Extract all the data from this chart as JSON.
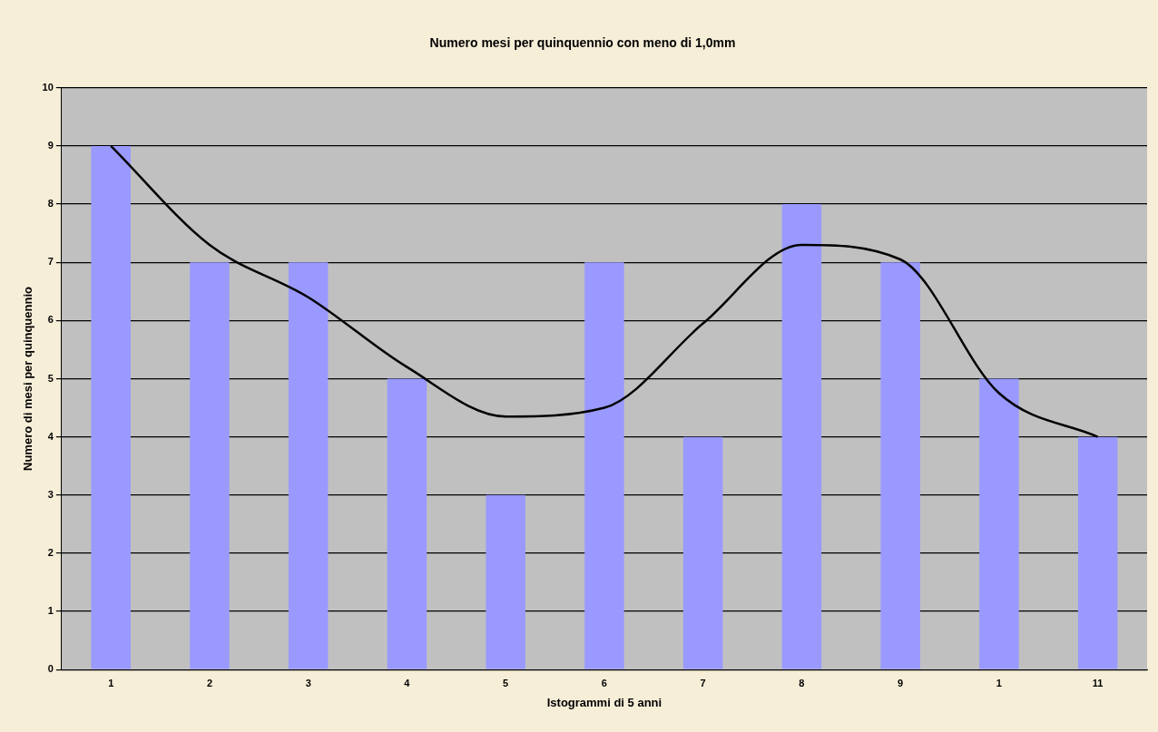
{
  "chart_data": {
    "type": "bar",
    "title": "Numero mesi per quinquennio con meno di 1,0mm",
    "xlabel": "Istogrammi di 5 anni",
    "ylabel": "Numero di mesi per quinquennio",
    "categories": [
      "1",
      "2",
      "3",
      "4",
      "5",
      "6",
      "7",
      "8",
      "9",
      "1",
      "11"
    ],
    "series": [
      {
        "color": "#9999ff",
        "values": [
          9,
          7,
          7,
          5,
          3,
          7,
          4,
          8,
          7,
          5,
          4
        ]
      },
      {
        "type": "line",
        "color": "#000000",
        "values": [
          9.0,
          7.3,
          6.4,
          5.2,
          4.35,
          4.5,
          5.95,
          7.3,
          7.05,
          4.75,
          4.0
        ]
      }
    ],
    "ylim": [
      0,
      10
    ],
    "yticks": [
      0,
      1,
      2,
      3,
      4,
      5,
      6,
      7,
      8,
      9,
      10
    ],
    "grid": "y",
    "marker": "none"
  }
}
